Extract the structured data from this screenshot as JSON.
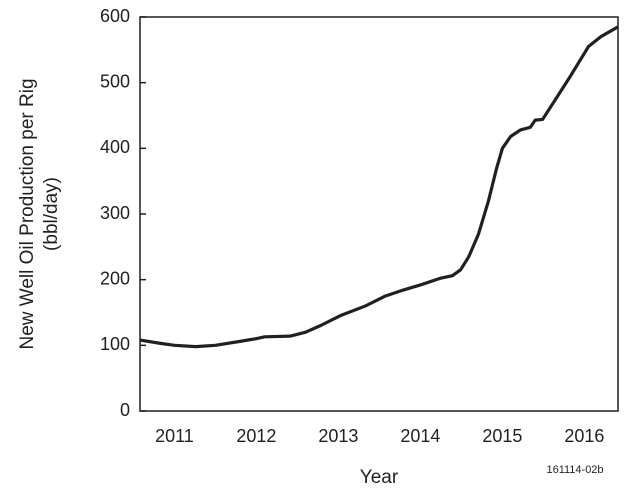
{
  "chart_data": {
    "type": "line",
    "y_label": [
      "New Well Oil Production per Rig",
      "(bbl/day)"
    ],
    "x_label": "Year",
    "annotation": "161114-02b",
    "xlim": [
      2011.08,
      2016.91
    ],
    "xticks": [
      {
        "value": 2011.5,
        "label": "2011"
      },
      {
        "value": 2012.5,
        "label": "2012"
      },
      {
        "value": 2013.5,
        "label": "2013"
      },
      {
        "value": 2014.5,
        "label": "2014"
      },
      {
        "value": 2015.5,
        "label": "2015"
      },
      {
        "value": 2016.5,
        "label": "2016"
      }
    ],
    "ylim": [
      0,
      600
    ],
    "yticks": [
      0,
      100,
      200,
      300,
      400,
      500,
      600
    ],
    "series": [
      {
        "color": "#231f20",
        "x": [
          2011.08,
          2011.33,
          2011.5,
          2011.76,
          2012.0,
          2012.3,
          2012.49,
          2012.6,
          2012.91,
          2013.1,
          2013.28,
          2013.52,
          2013.83,
          2014.07,
          2014.26,
          2014.5,
          2014.74,
          2014.89,
          2014.99,
          2015.09,
          2015.21,
          2015.33,
          2015.43,
          2015.5,
          2015.6,
          2015.72,
          2015.84,
          2015.9,
          2015.99,
          2016.15,
          2016.33,
          2016.55,
          2016.7,
          2016.91
        ],
        "values": [
          108,
          103,
          100,
          98,
          100,
          106,
          110,
          113,
          114,
          120,
          130,
          145,
          160,
          175,
          183,
          192,
          202,
          206,
          215,
          235,
          270,
          320,
          370,
          400,
          418,
          428,
          432,
          443,
          444,
          475,
          510,
          555,
          570,
          585
        ]
      }
    ]
  }
}
